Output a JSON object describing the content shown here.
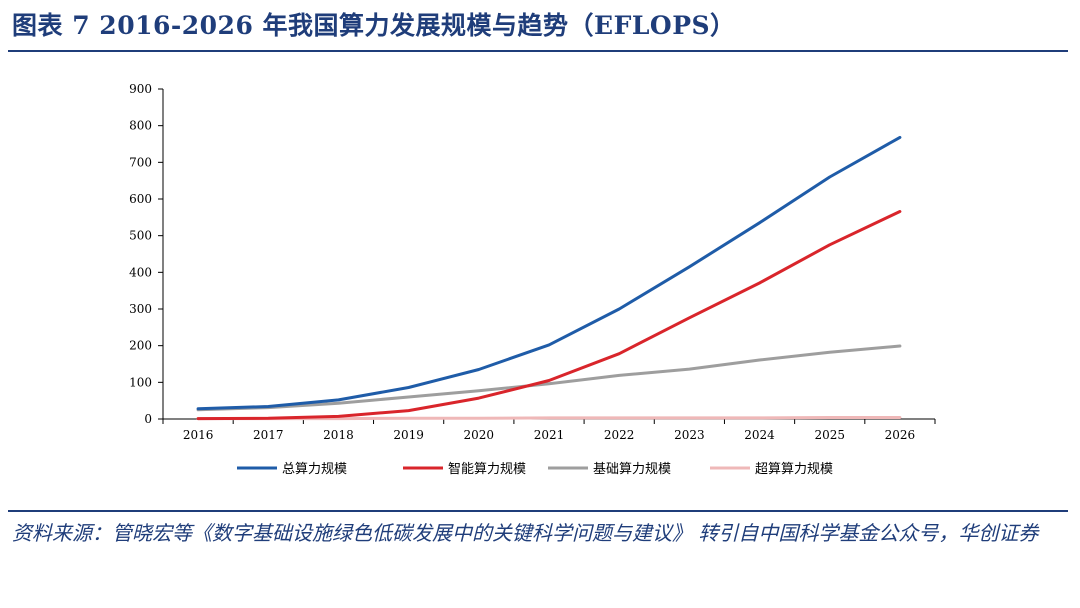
{
  "title": "图表 7   2016-2026 年我国算力发展规模与趋势（EFLOPS）",
  "source": "资料来源：管晓宏等《数字基础设施绿色低碳发展中的关键科学问题与建议》 转引自中国科学基金公众号，华创证券",
  "chart_data": {
    "type": "line",
    "x": [
      "2016",
      "2017",
      "2018",
      "2019",
      "2020",
      "2021",
      "2022",
      "2023",
      "2024",
      "2025",
      "2026"
    ],
    "ylim": [
      0,
      900
    ],
    "yticks": [
      0,
      100,
      200,
      300,
      400,
      500,
      600,
      700,
      800,
      900
    ],
    "grid": false,
    "legend_position": "bottom",
    "series": [
      {
        "name": "总算力规模",
        "color": "#1f5ca8",
        "values": [
          28,
          34,
          52,
          86,
          135,
          202,
          300,
          415,
          535,
          660,
          768
        ]
      },
      {
        "name": "智能算力规模",
        "color": "#d9252b",
        "values": [
          1,
          2,
          7,
          23,
          57,
          105,
          178,
          276,
          371,
          475,
          566
        ]
      },
      {
        "name": "基础算力规模",
        "color": "#9e9e9e",
        "values": [
          25,
          31,
          43,
          60,
          77,
          96,
          119,
          136,
          161,
          182,
          199
        ]
      },
      {
        "name": "超算算力规模",
        "color": "#efb8b8",
        "values": [
          1,
          1,
          1,
          2,
          2,
          3,
          3,
          3,
          3,
          4,
          4
        ]
      }
    ]
  }
}
